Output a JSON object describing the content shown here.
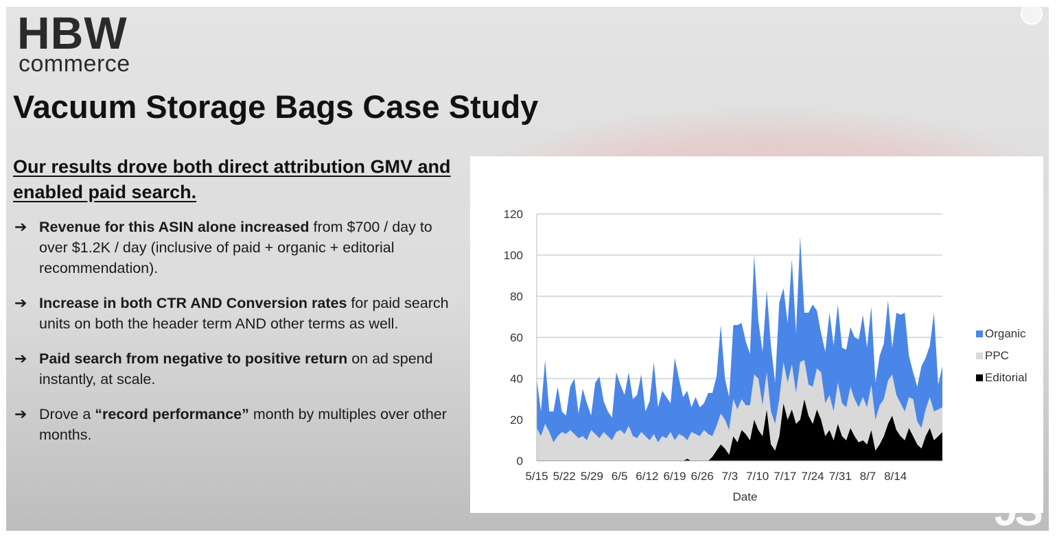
{
  "logo": {
    "main": "HBW",
    "sub": "commerce"
  },
  "title": "Vacuum Storage Bags Case Study",
  "headline": "Our results drove both direct attribution GMV and enabled paid search.",
  "bullets": [
    {
      "bold": "Revenue for this ASIN alone increased",
      "rest": " from $700 / day to over $1.2K / day (inclusive of paid + organic + editorial recommendation)."
    },
    {
      "bold": "Increase in both CTR AND Conversion rates",
      "rest": " for paid search units on both the header term AND other terms as well."
    },
    {
      "bold": "Paid search from negative to positive return",
      "rest": " on ad spend instantly, at scale."
    },
    {
      "pre": "Drove a ",
      "bold": "“record performance”",
      "rest": " month by multiples over other months."
    }
  ],
  "bullet_arrow": "➔",
  "watermark": "JS",
  "colors": {
    "organic": "#4a86e8",
    "ppc": "#d9d9d9",
    "editorial": "#000000",
    "accent_glow": "#eea096"
  },
  "chart_data": {
    "type": "area",
    "stacked": true,
    "xlabel": "Date",
    "ylabel": "",
    "ylim": [
      0,
      120
    ],
    "yticks": [
      0,
      20,
      40,
      60,
      80,
      100,
      120
    ],
    "x_tick_labels": [
      "5/15",
      "5/22",
      "5/29",
      "6/5",
      "6/12",
      "6/19",
      "6/26",
      "7/3",
      "7/10",
      "7/17",
      "7/24",
      "7/31",
      "8/7",
      "8/14"
    ],
    "grid": true,
    "legend_position": "right",
    "series": [
      {
        "name": "Editorial",
        "color": "#000000",
        "values": [
          0,
          0,
          0,
          0,
          0,
          0,
          0,
          0,
          0,
          0,
          0,
          0,
          0,
          0,
          0,
          0,
          0,
          0,
          0,
          0,
          0,
          0,
          0,
          0,
          0,
          0,
          0,
          0,
          0,
          0,
          0,
          0,
          0,
          0,
          0,
          0,
          1,
          0,
          0,
          0,
          0,
          0,
          2,
          5,
          8,
          6,
          3,
          12,
          9,
          15,
          13,
          10,
          20,
          15,
          12,
          25,
          8,
          5,
          12,
          28,
          20,
          25,
          18,
          20,
          30,
          22,
          18,
          25,
          20,
          12,
          15,
          10,
          18,
          12,
          10,
          16,
          12,
          9,
          10,
          8,
          15,
          5,
          8,
          12,
          18,
          22,
          15,
          12,
          10,
          16,
          12,
          8,
          6,
          12,
          16,
          10,
          12,
          14
        ]
      },
      {
        "name": "PPC",
        "color": "#d9d9d9",
        "values": [
          16,
          12,
          18,
          14,
          9,
          12,
          14,
          13,
          15,
          13,
          11,
          12,
          10,
          15,
          13,
          11,
          14,
          12,
          10,
          14,
          15,
          13,
          17,
          12,
          11,
          14,
          12,
          10,
          13,
          9,
          12,
          11,
          14,
          10,
          13,
          12,
          9,
          14,
          13,
          12,
          15,
          13,
          10,
          12,
          15,
          14,
          12,
          18,
          16,
          15,
          14,
          17,
          22,
          25,
          15,
          18,
          16,
          13,
          18,
          20,
          18,
          22,
          15,
          28,
          19,
          15,
          18,
          20,
          23,
          16,
          17,
          14,
          20,
          16,
          16,
          20,
          18,
          17,
          21,
          18,
          22,
          15,
          19,
          18,
          21,
          20,
          17,
          16,
          14,
          15,
          18,
          11,
          10,
          13,
          15,
          14,
          13,
          12
        ]
      },
      {
        "name": "Organic",
        "color": "#4a86e8",
        "values": [
          24,
          12,
          31,
          10,
          15,
          24,
          10,
          9,
          21,
          27,
          12,
          23,
          18,
          7,
          25,
          30,
          15,
          12,
          11,
          29,
          22,
          19,
          26,
          18,
          21,
          28,
          12,
          19,
          35,
          17,
          22,
          20,
          14,
          40,
          27,
          19,
          24,
          12,
          18,
          14,
          13,
          20,
          21,
          24,
          43,
          20,
          16,
          36,
          41,
          37,
          31,
          25,
          58,
          28,
          26,
          40,
          32,
          20,
          47,
          36,
          29,
          51,
          29,
          61,
          23,
          35,
          40,
          28,
          19,
          25,
          40,
          32,
          38,
          27,
          28,
          29,
          30,
          33,
          40,
          29,
          38,
          18,
          24,
          27,
          39,
          13,
          40,
          43,
          48,
          20,
          13,
          17,
          30,
          25,
          25,
          48,
          12,
          20
        ]
      }
    ]
  },
  "legend": [
    "Organic",
    "PPC",
    "Editorial"
  ]
}
